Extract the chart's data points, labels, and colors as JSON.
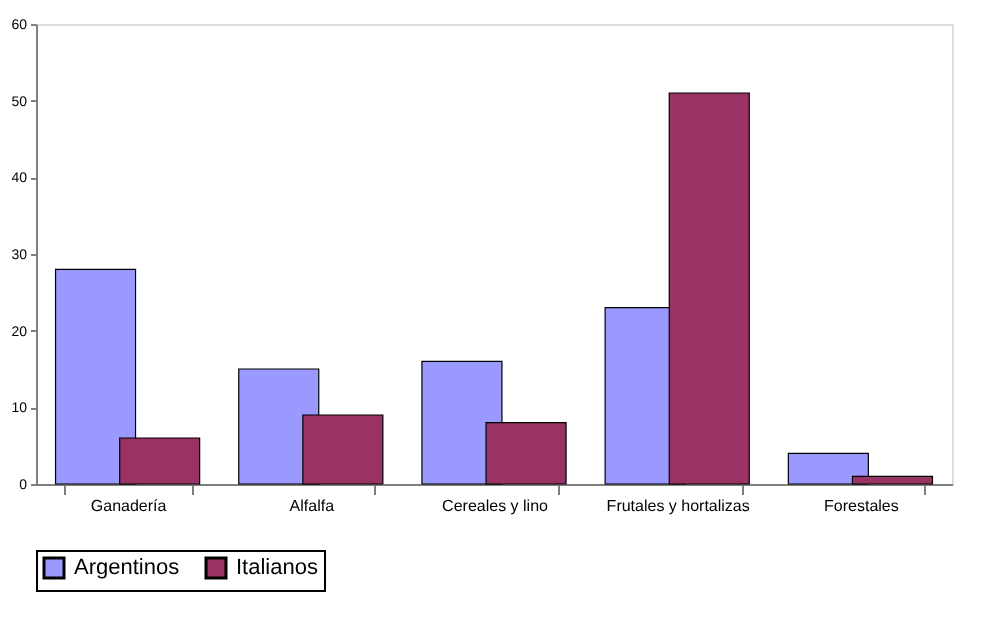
{
  "chart_data": {
    "type": "bar",
    "categories": [
      "Ganadería",
      "Alfalfa",
      "Cereales y lino",
      "Frutales y hortalizas",
      "Forestales"
    ],
    "series": [
      {
        "name": "Argentinos",
        "color": "#9999ff",
        "values": [
          28,
          15,
          16,
          23,
          4
        ]
      },
      {
        "name": "Italianos",
        "color": "#993366",
        "values": [
          6,
          9,
          8,
          51,
          1
        ]
      }
    ],
    "ylim": [
      0,
      60
    ],
    "yticks": [
      0,
      10,
      20,
      30,
      40,
      50,
      60
    ],
    "grid": false,
    "legend": "bottom"
  }
}
